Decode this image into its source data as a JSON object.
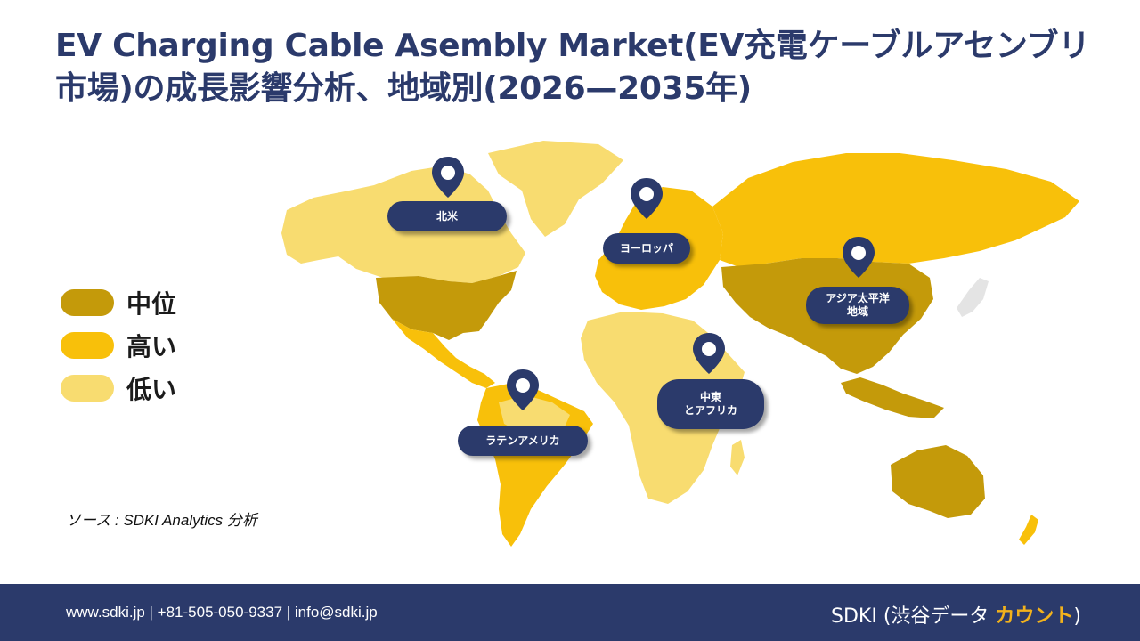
{
  "title": "EV Charging Cable Asembly Market(EV充電ケーブルアセンブリ市場)の成長影響分析、地域別(2026—2035年)",
  "legend": [
    {
      "label": "中位",
      "color": "#c49a0a"
    },
    {
      "label": "高い",
      "color": "#f8c00a"
    },
    {
      "label": "低い",
      "color": "#f8dc70"
    }
  ],
  "regions": {
    "north_america": "北米",
    "europe": "ヨーロッパ",
    "asia_pacific_line1": "アジア太平洋",
    "asia_pacific_line2": "地域",
    "mea_line1": "中東",
    "mea_line2": "とアフリカ",
    "latin_america": "ラテンアメリカ"
  },
  "source": "ソース : SDKI Analytics 分析",
  "footer": {
    "contact": "www.sdki.jp | +81-505-050-9337 | info@sdki.jp",
    "brand_main": "SDKI (渋谷データ ",
    "brand_accent": "カウント",
    "brand_close": ")"
  },
  "colors": {
    "navy": "#2b3a6b",
    "medium": "#c49a0a",
    "high": "#f8c00a",
    "low": "#f8dc70"
  }
}
